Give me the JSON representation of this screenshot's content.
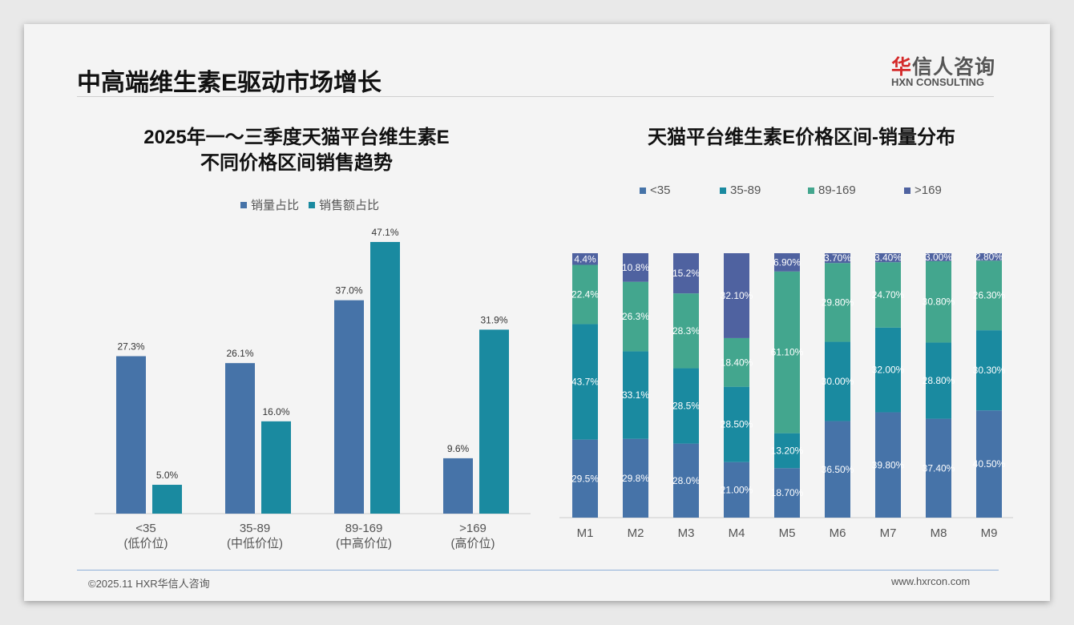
{
  "header": {
    "title": "中高端维生素E驱动市场增长",
    "logo_cn_red": "华",
    "logo_cn_rest": "信人咨询",
    "logo_en": "HXN CONSULTING"
  },
  "footer": {
    "copyright": "©2025.11 HXR华信人咨询",
    "website": "www.hxrcon.com"
  },
  "colors": {
    "blue": "#4673a8",
    "teal": "#1a8aa0",
    "green": "#43a68e",
    "indigo": "#4f62a0"
  },
  "chart_data": [
    {
      "type": "bar",
      "title_line1": "2025年一～三季度天猫平台维生素E",
      "title_line2": "不同价格区间销售趋势",
      "categories": [
        "<35",
        "35-89",
        "89-169",
        ">169"
      ],
      "category_sublabels": [
        "(低价位)",
        "(中低价位)",
        "(中高价位)",
        "(高价位)"
      ],
      "series": [
        {
          "name": "销量占比",
          "values": [
            27.3,
            26.1,
            37.0,
            9.6
          ],
          "labels": [
            "27.3%",
            "26.1%",
            "37.0%",
            "9.6%"
          ],
          "color": "#4673a8"
        },
        {
          "name": "销售额占比",
          "values": [
            5.0,
            16.0,
            47.1,
            31.9
          ],
          "labels": [
            "5.0%",
            "16.0%",
            "47.1%",
            "31.9%"
          ],
          "color": "#1a8aa0"
        }
      ],
      "ylim": [
        0,
        50
      ],
      "legend": "top-center"
    },
    {
      "type": "bar",
      "stacked": true,
      "title": "天猫平台维生素E价格区间-销量分布",
      "categories": [
        "M1",
        "M2",
        "M3",
        "M4",
        "M5",
        "M6",
        "M7",
        "M8",
        "M9"
      ],
      "series": [
        {
          "name": "<35",
          "color": "#4673a8",
          "values": [
            29.5,
            29.8,
            28.0,
            21.0,
            18.7,
            36.5,
            39.8,
            37.4,
            40.5
          ],
          "labels": [
            "29.5%",
            "29.8%",
            "28.0%",
            "21.00%",
            "18.70%",
            "36.50%",
            "39.80%",
            "37.40%",
            "40.50%"
          ]
        },
        {
          "name": "35-89",
          "color": "#1a8aa0",
          "values": [
            43.7,
            33.1,
            28.5,
            28.5,
            13.2,
            30.0,
            32.0,
            28.8,
            30.3
          ],
          "labels": [
            "43.7%",
            "33.1%",
            "28.5%",
            "28.50%",
            "13.20%",
            "30.00%",
            "32.00%",
            "28.80%",
            "30.30%"
          ]
        },
        {
          "name": "89-169",
          "color": "#43a68e",
          "values": [
            22.4,
            26.3,
            28.3,
            18.4,
            61.1,
            29.8,
            24.7,
            30.8,
            26.3
          ],
          "labels": [
            "22.4%",
            "26.3%",
            "28.3%",
            "18.40%",
            "61.10%",
            "29.80%",
            "24.70%",
            "30.80%",
            "26.30%"
          ]
        },
        {
          "name": ">169",
          "color": "#4f62a0",
          "values": [
            4.4,
            10.8,
            15.2,
            32.1,
            6.9,
            3.7,
            3.4,
            3.0,
            2.8
          ],
          "labels": [
            "4.4%",
            "10.8%",
            "15.2%",
            "32.10%",
            "6.90%",
            "3.70%",
            "3.40%",
            "3.00%",
            "2.80%"
          ]
        }
      ],
      "ylim": [
        0,
        100
      ],
      "legend": "top-center"
    }
  ]
}
